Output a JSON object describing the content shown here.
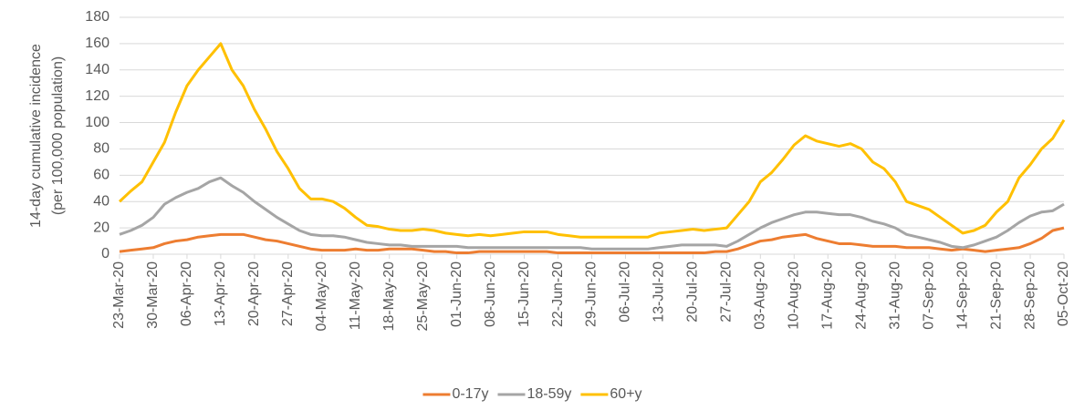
{
  "chart_data": {
    "type": "line",
    "ylabel": [
      "14-day cumulative incidence",
      "(per 100,000 population)"
    ],
    "categories": [
      "23-Mar-20",
      null,
      null,
      "30-Mar-20",
      null,
      null,
      "06-Apr-20",
      null,
      null,
      "13-Apr-20",
      null,
      null,
      "20-Apr-20",
      null,
      null,
      "27-Apr-20",
      null,
      null,
      "04-May-20",
      null,
      null,
      "11-May-20",
      null,
      null,
      "18-May-20",
      null,
      null,
      "25-May-20",
      null,
      null,
      "01-Jun-20",
      null,
      null,
      "08-Jun-20",
      null,
      null,
      "15-Jun-20",
      null,
      null,
      "22-Jun-20",
      null,
      null,
      "29-Jun-20",
      null,
      null,
      "06-Jul-20",
      null,
      null,
      "13-Jul-20",
      null,
      null,
      "20-Jul-20",
      null,
      null,
      "27-Jul-20",
      null,
      null,
      "03-Aug-20",
      null,
      null,
      "10-Aug-20",
      null,
      null,
      "17-Aug-20",
      null,
      null,
      "24-Aug-20",
      null,
      null,
      "31-Aug-20",
      null,
      null,
      "07-Sep-20",
      null,
      null,
      "14-Sep-20",
      null,
      null,
      "21-Sep-20",
      null,
      null,
      "28-Sep-20",
      null,
      null,
      "05-Oct-20"
    ],
    "series": [
      {
        "name": "0-17y",
        "color": "#ED7D31",
        "values": [
          2,
          3,
          4,
          5,
          8,
          10,
          11,
          13,
          14,
          15,
          15,
          15,
          13,
          11,
          10,
          8,
          6,
          4,
          3,
          3,
          3,
          4,
          3,
          3,
          4,
          4,
          4,
          3,
          2,
          2,
          1,
          1,
          2,
          2,
          2,
          2,
          2,
          2,
          2,
          1,
          1,
          1,
          1,
          1,
          1,
          1,
          1,
          1,
          1,
          1,
          1,
          1,
          1,
          2,
          2,
          4,
          7,
          10,
          11,
          13,
          14,
          15,
          12,
          10,
          8,
          8,
          7,
          6,
          6,
          6,
          5,
          5,
          5,
          4,
          3,
          4,
          3,
          2,
          3,
          4,
          5,
          8,
          12,
          18,
          20
        ]
      },
      {
        "name": "18-59y",
        "color": "#A5A5A5",
        "values": [
          15,
          18,
          22,
          28,
          38,
          43,
          47,
          50,
          55,
          58,
          52,
          47,
          40,
          34,
          28,
          23,
          18,
          15,
          14,
          14,
          13,
          11,
          9,
          8,
          7,
          7,
          6,
          6,
          6,
          6,
          6,
          5,
          5,
          5,
          5,
          5,
          5,
          5,
          5,
          5,
          5,
          5,
          4,
          4,
          4,
          4,
          4,
          4,
          5,
          6,
          7,
          7,
          7,
          7,
          6,
          10,
          15,
          20,
          24,
          27,
          30,
          32,
          32,
          31,
          30,
          30,
          28,
          25,
          23,
          20,
          15,
          13,
          11,
          9,
          6,
          5,
          7,
          10,
          13,
          18,
          24,
          29,
          32,
          33,
          38
        ]
      },
      {
        "name": "60+y",
        "color": "#FFC000",
        "values": [
          40,
          48,
          55,
          70,
          85,
          108,
          128,
          140,
          150,
          160,
          140,
          128,
          110,
          95,
          78,
          65,
          50,
          42,
          42,
          40,
          35,
          28,
          22,
          21,
          19,
          18,
          18,
          19,
          18,
          16,
          15,
          14,
          15,
          14,
          15,
          16,
          17,
          17,
          17,
          15,
          14,
          13,
          13,
          13,
          13,
          13,
          13,
          13,
          16,
          17,
          18,
          19,
          18,
          19,
          20,
          30,
          40,
          55,
          62,
          72,
          83,
          90,
          86,
          84,
          82,
          84,
          80,
          70,
          65,
          55,
          40,
          37,
          34,
          28,
          22,
          16,
          18,
          22,
          32,
          40,
          58,
          68,
          80,
          88,
          102
        ]
      }
    ],
    "ylim": [
      0,
      180
    ],
    "yticks": [
      0,
      20,
      40,
      60,
      80,
      100,
      120,
      140,
      160,
      180
    ],
    "grid": true,
    "legend": "bottom"
  }
}
